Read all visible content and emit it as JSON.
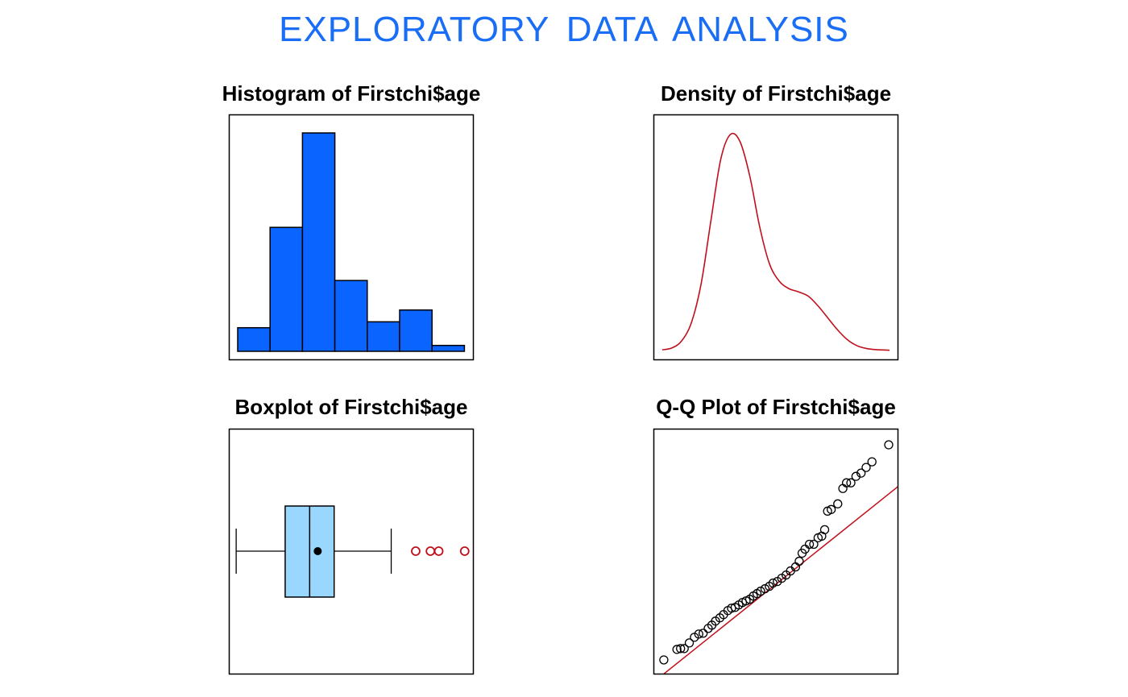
{
  "title": "EXPLORATORY  DATA  ANALYSIS",
  "colors": {
    "title": "#1a6ef5",
    "hist_fill": "#0a64ff",
    "density_line": "#c0101c",
    "box_fill": "#99d7ff",
    "outlier": "#c0101c",
    "qq_line": "#c0101c"
  },
  "chart_data": [
    {
      "type": "bar",
      "title": "Histogram of Firstchi$age",
      "bins": [
        [
          0,
          1
        ],
        [
          1,
          2
        ],
        [
          2,
          3
        ],
        [
          3,
          4
        ],
        [
          4,
          5
        ],
        [
          5,
          6
        ],
        [
          6,
          7
        ]
      ],
      "values": [
        4,
        21,
        37,
        12,
        5,
        7,
        1
      ],
      "ylim": [
        0,
        38.5
      ]
    },
    {
      "type": "line",
      "title": "Density of Firstchi$age",
      "x": [
        0.0,
        0.3,
        0.6,
        0.9,
        1.2,
        1.5,
        1.8,
        2.1,
        2.4,
        2.7,
        3.0,
        3.3,
        3.6,
        3.9,
        4.2,
        4.5,
        4.8,
        5.1,
        5.4,
        5.7,
        6.0,
        6.3,
        6.6,
        6.9,
        7.0
      ],
      "y": [
        0.003,
        0.012,
        0.045,
        0.13,
        0.31,
        0.6,
        0.88,
        0.995,
        0.96,
        0.8,
        0.57,
        0.4,
        0.32,
        0.285,
        0.27,
        0.25,
        0.205,
        0.15,
        0.095,
        0.05,
        0.022,
        0.009,
        0.004,
        0.002,
        0.001
      ],
      "ylim": [
        0,
        1.05
      ]
    },
    {
      "type": "boxplot",
      "title": "Boxplot of Firstchi$age",
      "whisker_low": 0,
      "q1": 2,
      "median": 3,
      "mean": 3.33,
      "q3": 4,
      "whisker_high": 6.33,
      "outliers": [
        7.33,
        7.93,
        8.27,
        9.33
      ],
      "xlim": [
        -0.3,
        9.7
      ]
    },
    {
      "type": "scatter",
      "title": "Q-Q Plot of Firstchi$age",
      "theoretical": [
        0.05,
        0.95,
        1.2,
        1.45,
        1.8,
        2.15,
        2.45,
        2.75,
        3.1,
        3.35,
        3.6,
        3.9,
        4.15,
        4.45,
        4.7,
        4.95,
        5.2,
        5.45,
        5.7,
        5.95,
        6.2,
        6.45,
        6.7,
        7.0,
        7.3,
        7.55,
        7.85,
        8.15,
        8.45,
        8.75,
        9.1,
        9.35,
        9.55,
        9.75,
        10.05,
        10.35,
        10.65,
        10.9,
        11.1,
        11.3,
        11.55,
        12.0,
        12.35,
        12.6,
        12.9,
        13.25,
        13.6,
        13.95,
        14.35,
        15.5
      ],
      "sample": [
        0.3,
        0.95,
        1.0,
        1.0,
        1.35,
        1.7,
        1.9,
        1.95,
        2.25,
        2.45,
        2.7,
        2.9,
        3.1,
        3.35,
        3.5,
        3.55,
        3.7,
        3.85,
        3.95,
        4.05,
        4.25,
        4.4,
        4.55,
        4.7,
        4.85,
        5.05,
        5.15,
        5.35,
        5.55,
        5.8,
        6.05,
        6.4,
        6.9,
        7.15,
        7.45,
        7.45,
        7.85,
        7.95,
        8.35,
        9.5,
        9.6,
        9.95,
        10.9,
        11.25,
        11.25,
        11.65,
        11.85,
        12.2,
        12.55,
        13.6
      ],
      "line": {
        "intercept": -0.6,
        "slope": 0.72
      },
      "xlim": [
        0,
        15.5
      ],
      "ylim": [
        0,
        14.0
      ]
    }
  ]
}
